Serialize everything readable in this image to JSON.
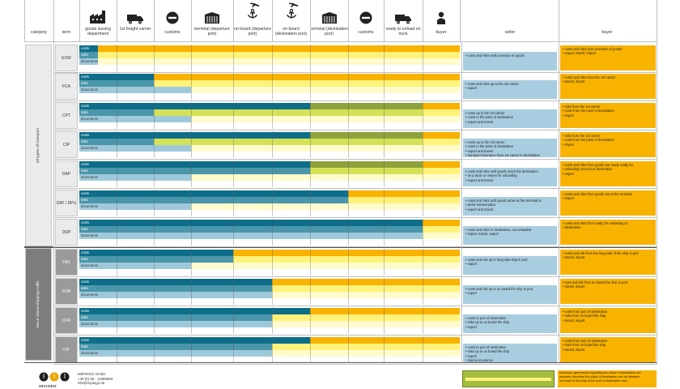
{
  "colors": {
    "cost": "#0e6e8a",
    "risk": "#4b96ab",
    "doc": "#9ec9db",
    "buyer_yellow": "#fff27a",
    "orange": "#f8b200",
    "olive": "#8da23c",
    "lime": "#d4e157",
    "seller_panel": "#a9cde0",
    "buyer_panel": "#f8b200",
    "grid": "#bfbfbf"
  },
  "header": {
    "category": "category",
    "term": "term",
    "stages": [
      {
        "label": "goods issuing department",
        "icon": "factory-icon"
      },
      {
        "label": "1st freight carrier",
        "icon": "truck-icon"
      },
      {
        "label": "customs",
        "icon": "no-entry-icon"
      },
      {
        "label": "terminal (departure port)",
        "icon": "terminal-icon"
      },
      {
        "label": "on board (departure port)",
        "icon": "anchor-plane-icon"
      },
      {
        "label": "on board (destination port)",
        "icon": "anchor-plane-icon"
      },
      {
        "label": "terminal (destination port)",
        "icon": "terminal-icon"
      },
      {
        "label": "customs",
        "icon": "no-entry-icon"
      },
      {
        "label": "ready to unload on truck",
        "icon": "truck-icon"
      },
      {
        "label": "buyer",
        "icon": "person-icon"
      }
    ],
    "seller": "seller",
    "buyer": "buyer"
  },
  "categories": [
    {
      "label": "all types of transport",
      "group": "all"
    },
    {
      "label": "sea & inland shipping traffic",
      "group": "sea"
    }
  ],
  "row_labels": {
    "costs": "costs",
    "risks": "risks",
    "documents": "documents"
  },
  "chart_data": {
    "type": "bar",
    "stage_units": "stage boundaries 0–10 (goods issuing department = 0, buyer = 10)",
    "terms": [
      {
        "term": "EXW",
        "group": "all",
        "cost_end": 0.5,
        "risk_end": 0.5,
        "doc_end": 0.5,
        "seller": [
          "costs and risks until provision of goods"
        ],
        "buyer": [
          "costs and risks from provision of goods",
          "export, transit, import"
        ]
      },
      {
        "term": "FCA",
        "group": "all",
        "cost_end": 2,
        "risk_end": 2,
        "doc_end": 3,
        "seller": [
          "costs and risks up to the 1st carrier",
          "export"
        ],
        "buyer": [
          "costs and risks from the 1st carrier",
          "transit, import"
        ]
      },
      {
        "term": "CPT",
        "group": "all",
        "cost_end": 6,
        "risk_end": 2,
        "doc_end": 3,
        "olive_end": 9,
        "seller": [
          "costs up to the 1st carrier",
          "costs to the point of destination",
          "export and transit"
        ],
        "buyer": [
          "risks from the 1st carrier",
          "costs from the point of destination",
          "import"
        ]
      },
      {
        "term": "CIP",
        "group": "all",
        "cost_end": 6,
        "risk_end": 2,
        "doc_end": 3,
        "olive_end": 9,
        "seller": [
          "costs up to the 1st carrier",
          "costs to the point of destination",
          "export and transit",
          "transport insurance from 1st carrier to destination"
        ],
        "buyer": [
          "risks from the 1st carrier",
          "costs from the point of destination",
          "import"
        ]
      },
      {
        "term": "DAP",
        "group": "all",
        "cost_end": 6,
        "risk_end": 6,
        "doc_end": 3,
        "olive_end": 9,
        "seller": [
          "costs and risks until goods reach the destination",
          "on a truck or means for unloading",
          "export and transit"
        ],
        "buyer": [
          "costs and risks from goods are ready ready for",
          "unloading on truck at destination",
          "import"
        ]
      },
      {
        "term": "DAT / DPU",
        "group": "all",
        "cost_end": 7,
        "risk_end": 7,
        "doc_end": 3,
        "seller": [
          "costs and risks until goods arrive at the terminal or",
          "at the named place",
          "export and transit"
        ],
        "buyer": [
          "costs and risks from goods are at the terminal",
          "import"
        ]
      },
      {
        "term": "DDP",
        "group": "all",
        "cost_end": 9,
        "risk_end": 9,
        "doc_end": 9,
        "seller": [
          "costs and risks to destination, not unloaded",
          "import, transit, export"
        ],
        "buyer": [
          "costs and risks from ready for unloading at",
          "destination"
        ]
      },
      {
        "term": "FAS",
        "group": "sea",
        "cost_end": 4,
        "risk_end": 4,
        "doc_end": 3,
        "seller": [
          "costs and risk up to long side ship in port",
          "export"
        ],
        "buyer": [
          "costs and risk from the long side of the ship in port",
          "transit, import"
        ]
      },
      {
        "term": "FOB",
        "group": "sea",
        "cost_end": 5,
        "risk_end": 5,
        "doc_end": 5,
        "seller": [
          "costs and risk up to on board the ship in port",
          "export"
        ],
        "buyer": [
          "cost and risk from on board the ship in port",
          "transit, import"
        ]
      },
      {
        "term": "CFR",
        "group": "sea",
        "cost_end": 6,
        "risk_end": 5,
        "doc_end": 5,
        "seller": [
          "costs to port of destination",
          "risks up to on board the ship",
          "export"
        ],
        "buyer": [
          "costs from port of destination",
          "risks from on board the ship",
          "transit, import"
        ]
      },
      {
        "term": "CIF",
        "group": "sea",
        "cost_end": 6,
        "risk_end": 5,
        "doc_end": 5,
        "seller": [
          "costs to port of destination",
          "risks up to on board the ship",
          "export",
          "marine insurance"
        ],
        "buyer": [
          "costs from port of destination",
          "risks from on board the ship",
          "transit, import"
        ]
      }
    ]
  },
  "footer": {
    "company": "IMPANGO GmbH",
    "phone": "+49 (0) 30 - 11080684",
    "email": "info@myango.de",
    "logo_text": "INVISEO",
    "note": [
      "individual agreements regarding the place of destination are",
      "possible, therefore the place of destination can be between",
      "on-board of the ship at the port of destination and..."
    ]
  }
}
